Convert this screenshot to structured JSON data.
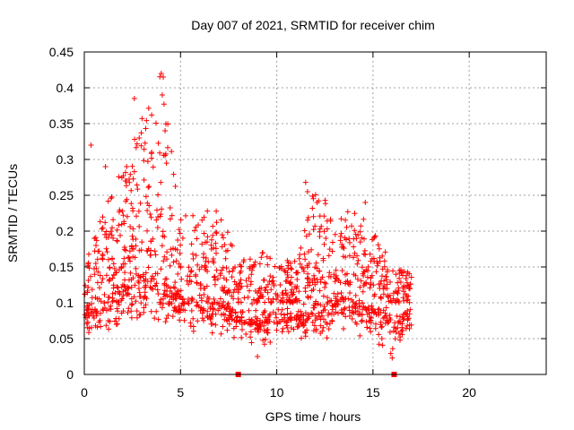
{
  "chart_data": {
    "type": "scatter",
    "title": "Day 007 of 2021, SRMTID for receiver chim",
    "xlabel": "GPS time / hours",
    "ylabel": "SRMTID / TECUs",
    "xlim": [
      0,
      24
    ],
    "ylim": [
      0,
      0.45
    ],
    "xticks": [
      0,
      5,
      10,
      15,
      20
    ],
    "yticks": [
      0,
      0.05,
      0.1,
      0.15,
      0.2,
      0.25,
      0.3,
      0.35,
      0.4,
      0.45
    ],
    "xtick_labels": [
      "0",
      "5",
      "10",
      "15",
      "20"
    ],
    "ytick_labels": [
      "0",
      "0.05",
      "0.1",
      "0.15",
      "0.2",
      "0.25",
      "0.3",
      "0.35",
      "0.4",
      "0.45"
    ],
    "grid": true,
    "marker": "+",
    "color": "#ff0000",
    "x_range_observed": [
      0.0,
      17.0
    ],
    "envelope": [
      {
        "x": 0,
        "lo": 0.04,
        "hi": 0.15,
        "center": 0.11
      },
      {
        "x": 1,
        "lo": 0.04,
        "hi": 0.23,
        "center": 0.12
      },
      {
        "x": 2,
        "lo": 0.06,
        "hi": 0.29,
        "center": 0.15
      },
      {
        "x": 3,
        "lo": 0.05,
        "hi": 0.36,
        "center": 0.17
      },
      {
        "x": 4,
        "lo": 0.05,
        "hi": 0.42,
        "center": 0.16
      },
      {
        "x": 5,
        "lo": 0.06,
        "hi": 0.23,
        "center": 0.13
      },
      {
        "x": 6,
        "lo": 0.05,
        "hi": 0.23,
        "center": 0.12
      },
      {
        "x": 7,
        "lo": 0.05,
        "hi": 0.23,
        "center": 0.12
      },
      {
        "x": 8,
        "lo": 0.04,
        "hi": 0.17,
        "center": 0.1
      },
      {
        "x": 9,
        "lo": 0.02,
        "hi": 0.19,
        "center": 0.1
      },
      {
        "x": 10,
        "lo": 0.04,
        "hi": 0.16,
        "center": 0.1
      },
      {
        "x": 11,
        "lo": 0.04,
        "hi": 0.16,
        "center": 0.1
      },
      {
        "x": 12,
        "lo": 0.04,
        "hi": 0.27,
        "center": 0.11
      },
      {
        "x": 13,
        "lo": 0.05,
        "hi": 0.22,
        "center": 0.13
      },
      {
        "x": 14,
        "lo": 0.05,
        "hi": 0.24,
        "center": 0.12
      },
      {
        "x": 15,
        "lo": 0.04,
        "hi": 0.2,
        "center": 0.11
      },
      {
        "x": 16,
        "lo": 0.02,
        "hi": 0.16,
        "center": 0.1
      },
      {
        "x": 17,
        "lo": 0.04,
        "hi": 0.14,
        "center": 0.1
      }
    ],
    "notable_points": [
      {
        "x": 0.35,
        "y": 0.32
      },
      {
        "x": 1.1,
        "y": 0.29
      },
      {
        "x": 2.2,
        "y": 0.29
      },
      {
        "x": 2.6,
        "y": 0.385
      },
      {
        "x": 2.85,
        "y": 0.33
      },
      {
        "x": 3.0,
        "y": 0.357
      },
      {
        "x": 3.5,
        "y": 0.31
      },
      {
        "x": 4.0,
        "y": 0.42
      },
      {
        "x": 4.1,
        "y": 0.415
      },
      {
        "x": 4.05,
        "y": 0.39
      },
      {
        "x": 4.2,
        "y": 0.34
      },
      {
        "x": 11.5,
        "y": 0.268
      },
      {
        "x": 11.6,
        "y": 0.255
      },
      {
        "x": 14.6,
        "y": 0.24
      },
      {
        "x": 9.0,
        "y": 0.025
      },
      {
        "x": 16.0,
        "y": 0.023
      }
    ],
    "zero_markers": [
      {
        "x": 8.0,
        "y": 0
      },
      {
        "x": 16.1,
        "y": 0
      }
    ]
  }
}
